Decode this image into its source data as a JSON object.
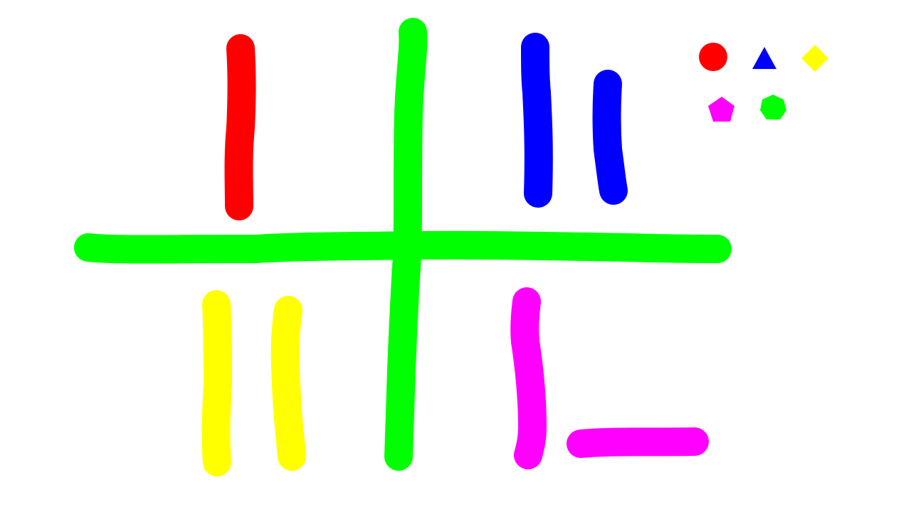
{
  "canvas": {
    "background": "#ffffff"
  },
  "palette": {
    "colors": {
      "red": "#ff0000",
      "blue": "#0000ff",
      "yellow": "#ffff00",
      "magenta": "#ff00ff",
      "green": "#00ff00"
    },
    "shapes": [
      {
        "name": "red-circle-icon",
        "shape": "circle",
        "color": "#ff0000"
      },
      {
        "name": "blue-triangle-icon",
        "shape": "triangle",
        "color": "#0000ff"
      },
      {
        "name": "yellow-diamond-icon",
        "shape": "diamond",
        "color": "#ffff00"
      },
      {
        "name": "magenta-pentagon-icon",
        "shape": "pentagon",
        "color": "#ff00ff"
      },
      {
        "name": "green-heptagon-icon",
        "shape": "heptagon",
        "color": "#00ff00"
      }
    ]
  },
  "strokes": [
    {
      "name": "green-horizontal-stroke",
      "color": "#00ff00"
    },
    {
      "name": "green-vertical-stroke",
      "color": "#00ff00"
    },
    {
      "name": "red-stroke",
      "color": "#ff0000"
    },
    {
      "name": "blue-stroke-1",
      "color": "#0000ff"
    },
    {
      "name": "blue-stroke-2",
      "color": "#0000ff"
    },
    {
      "name": "yellow-stroke-1",
      "color": "#ffff00"
    },
    {
      "name": "yellow-stroke-2",
      "color": "#ffff00"
    },
    {
      "name": "magenta-vertical-stroke",
      "color": "#ff00ff"
    },
    {
      "name": "magenta-horizontal-stroke",
      "color": "#ff00ff"
    }
  ]
}
